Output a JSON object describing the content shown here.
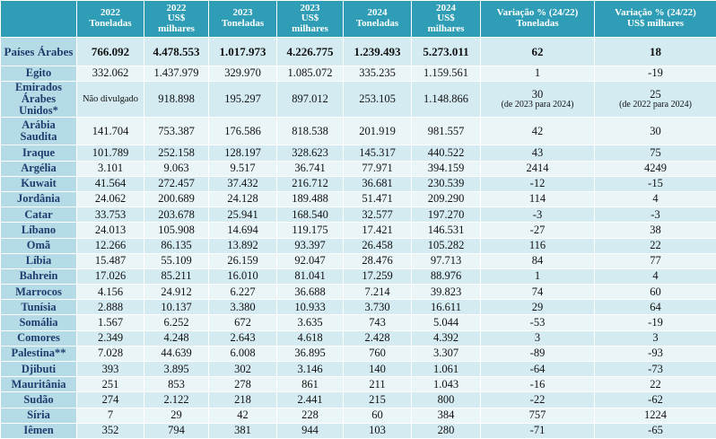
{
  "table": {
    "header": [
      [],
      [
        "2022",
        "Toneladas"
      ],
      [
        "2022",
        "US$",
        "milhares"
      ],
      [
        "2023",
        "Toneladas"
      ],
      [
        "2023",
        "US$",
        "milhares"
      ],
      [
        "2024",
        "Toneladas"
      ],
      [
        "2024",
        "US$",
        "milhares"
      ],
      [
        "Variação % (24/22)",
        "Toneladas"
      ],
      [
        "Variação % (24/22)",
        "US$ milhares"
      ]
    ],
    "rows": [
      [
        "Países Árabes",
        "766.092",
        "4.478.553",
        "1.017.973",
        "4.226.775",
        "1.239.493",
        "5.273.011",
        "62",
        "18"
      ],
      [
        "Egito",
        "332.062",
        "1.437.979",
        "329.970",
        "1.085.072",
        "335.235",
        "1.159.561",
        "1",
        "-19"
      ],
      [
        "Emirados Árabes Unidos*",
        "Não divulgado",
        "918.898",
        "195.297",
        "897.012",
        "253.105",
        "1.148.866",
        {
          "text": "30",
          "note": "(de 2023 para 2024)"
        },
        {
          "text": "25",
          "note": "(de 2022 para 2024)"
        }
      ],
      [
        "Arábia Saudita",
        "141.704",
        "753.387",
        "176.586",
        "818.538",
        "201.919",
        "981.557",
        "42",
        "30"
      ],
      [
        "Iraque",
        "101.789",
        "252.158",
        "128.197",
        "328.623",
        "145.317",
        "440.522",
        "43",
        "75"
      ],
      [
        "Argélia",
        "3.101",
        "9.063",
        "9.517",
        "36.741",
        "77.971",
        "394.159",
        "2414",
        "4249"
      ],
      [
        "Kuwait",
        "41.564",
        "272.457",
        "37.432",
        "216.712",
        "36.681",
        "230.539",
        "-12",
        "-15"
      ],
      [
        "Jordânia",
        "24.062",
        "200.689",
        "24.128",
        "189.488",
        "51.471",
        "209.290",
        "114",
        "4"
      ],
      [
        "Catar",
        "33.753",
        "203.678",
        "25.941",
        "168.540",
        "32.577",
        "197.270",
        "-3",
        "-3"
      ],
      [
        "Líbano",
        "24.013",
        "105.908",
        "14.694",
        "119.175",
        "17.421",
        "146.531",
        "-27",
        "38"
      ],
      [
        "Omã",
        "12.266",
        "86.135",
        "13.892",
        "93.397",
        "26.458",
        "105.282",
        "116",
        "22"
      ],
      [
        "Líbia",
        "15.487",
        "55.109",
        "26.159",
        "92.047",
        "28.476",
        "97.713",
        "84",
        "77"
      ],
      [
        "Bahrein",
        "17.026",
        "85.211",
        "16.010",
        "81.041",
        "17.259",
        "88.976",
        "1",
        "4"
      ],
      [
        "Marrocos",
        "4.156",
        "24.912",
        "6.227",
        "36.688",
        "7.214",
        "39.823",
        "74",
        "60"
      ],
      [
        "Tunísia",
        "2.888",
        "10.137",
        "3.380",
        "10.933",
        "3.730",
        "16.611",
        "29",
        "64"
      ],
      [
        "Somália",
        "1.567",
        "6.252",
        "672",
        "3.635",
        "743",
        "5.044",
        "-53",
        "-19"
      ],
      [
        "Comores",
        "2.349",
        "4.248",
        "2.643",
        "4.618",
        "2.428",
        "4.392",
        "3",
        "3"
      ],
      [
        "Palestina**",
        "7.028",
        "44.639",
        "6.008",
        "36.895",
        "760",
        "3.307",
        "-89",
        "-93"
      ],
      [
        "Djibuti",
        "393",
        "3.895",
        "302",
        "3.146",
        "140",
        "1.061",
        "-64",
        "-73"
      ],
      [
        "Mauritânia",
        "251",
        "853",
        "278",
        "861",
        "211",
        "1.043",
        "-16",
        "22"
      ],
      [
        "Sudão",
        "274",
        "2.122",
        "218",
        "2.441",
        "215",
        "800",
        "-22",
        "-62"
      ],
      [
        "Síria",
        "7",
        "29",
        "42",
        "228",
        "60",
        "384",
        "757",
        "1224"
      ],
      [
        "Iêmen",
        "352",
        "794",
        "381",
        "944",
        "103",
        "280",
        "-71",
        "-65"
      ]
    ]
  }
}
